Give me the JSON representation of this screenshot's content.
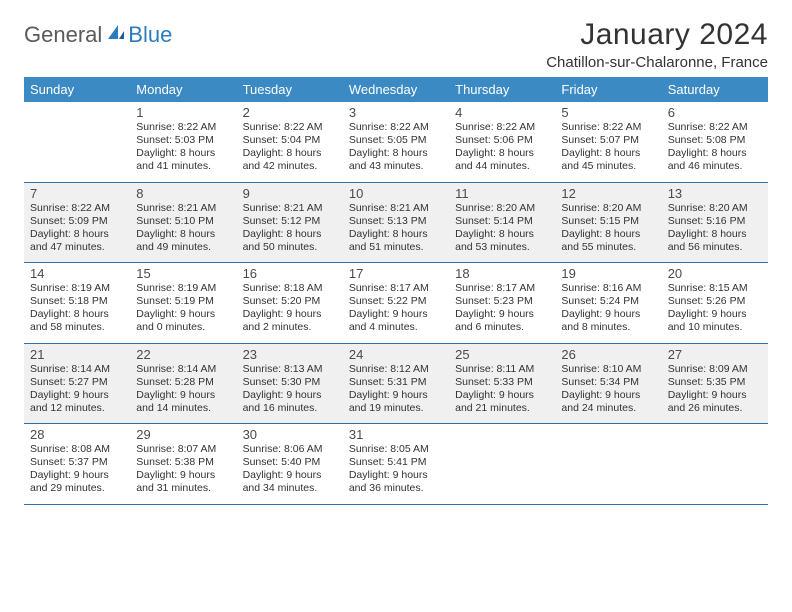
{
  "logo": {
    "general": "General",
    "blue": "Blue"
  },
  "title": "January 2024",
  "location": "Chatillon-sur-Chalaronne, France",
  "dayHeaders": [
    "Sunday",
    "Monday",
    "Tuesday",
    "Wednesday",
    "Thursday",
    "Friday",
    "Saturday"
  ],
  "colors": {
    "header_bg": "#3b8ac4",
    "rule": "#2f6fa8",
    "shade": "#f0f0f0",
    "logo_blue": "#2f7bbf",
    "text": "#333333"
  },
  "weeks": [
    {
      "shade": false,
      "cells": [
        {
          "day": "",
          "sunrise": "",
          "sunset": "",
          "daylight1": "",
          "daylight2": ""
        },
        {
          "day": "1",
          "sunrise": "Sunrise: 8:22 AM",
          "sunset": "Sunset: 5:03 PM",
          "daylight1": "Daylight: 8 hours",
          "daylight2": "and 41 minutes."
        },
        {
          "day": "2",
          "sunrise": "Sunrise: 8:22 AM",
          "sunset": "Sunset: 5:04 PM",
          "daylight1": "Daylight: 8 hours",
          "daylight2": "and 42 minutes."
        },
        {
          "day": "3",
          "sunrise": "Sunrise: 8:22 AM",
          "sunset": "Sunset: 5:05 PM",
          "daylight1": "Daylight: 8 hours",
          "daylight2": "and 43 minutes."
        },
        {
          "day": "4",
          "sunrise": "Sunrise: 8:22 AM",
          "sunset": "Sunset: 5:06 PM",
          "daylight1": "Daylight: 8 hours",
          "daylight2": "and 44 minutes."
        },
        {
          "day": "5",
          "sunrise": "Sunrise: 8:22 AM",
          "sunset": "Sunset: 5:07 PM",
          "daylight1": "Daylight: 8 hours",
          "daylight2": "and 45 minutes."
        },
        {
          "day": "6",
          "sunrise": "Sunrise: 8:22 AM",
          "sunset": "Sunset: 5:08 PM",
          "daylight1": "Daylight: 8 hours",
          "daylight2": "and 46 minutes."
        }
      ]
    },
    {
      "shade": true,
      "cells": [
        {
          "day": "7",
          "sunrise": "Sunrise: 8:22 AM",
          "sunset": "Sunset: 5:09 PM",
          "daylight1": "Daylight: 8 hours",
          "daylight2": "and 47 minutes."
        },
        {
          "day": "8",
          "sunrise": "Sunrise: 8:21 AM",
          "sunset": "Sunset: 5:10 PM",
          "daylight1": "Daylight: 8 hours",
          "daylight2": "and 49 minutes."
        },
        {
          "day": "9",
          "sunrise": "Sunrise: 8:21 AM",
          "sunset": "Sunset: 5:12 PM",
          "daylight1": "Daylight: 8 hours",
          "daylight2": "and 50 minutes."
        },
        {
          "day": "10",
          "sunrise": "Sunrise: 8:21 AM",
          "sunset": "Sunset: 5:13 PM",
          "daylight1": "Daylight: 8 hours",
          "daylight2": "and 51 minutes."
        },
        {
          "day": "11",
          "sunrise": "Sunrise: 8:20 AM",
          "sunset": "Sunset: 5:14 PM",
          "daylight1": "Daylight: 8 hours",
          "daylight2": "and 53 minutes."
        },
        {
          "day": "12",
          "sunrise": "Sunrise: 8:20 AM",
          "sunset": "Sunset: 5:15 PM",
          "daylight1": "Daylight: 8 hours",
          "daylight2": "and 55 minutes."
        },
        {
          "day": "13",
          "sunrise": "Sunrise: 8:20 AM",
          "sunset": "Sunset: 5:16 PM",
          "daylight1": "Daylight: 8 hours",
          "daylight2": "and 56 minutes."
        }
      ]
    },
    {
      "shade": false,
      "cells": [
        {
          "day": "14",
          "sunrise": "Sunrise: 8:19 AM",
          "sunset": "Sunset: 5:18 PM",
          "daylight1": "Daylight: 8 hours",
          "daylight2": "and 58 minutes."
        },
        {
          "day": "15",
          "sunrise": "Sunrise: 8:19 AM",
          "sunset": "Sunset: 5:19 PM",
          "daylight1": "Daylight: 9 hours",
          "daylight2": "and 0 minutes."
        },
        {
          "day": "16",
          "sunrise": "Sunrise: 8:18 AM",
          "sunset": "Sunset: 5:20 PM",
          "daylight1": "Daylight: 9 hours",
          "daylight2": "and 2 minutes."
        },
        {
          "day": "17",
          "sunrise": "Sunrise: 8:17 AM",
          "sunset": "Sunset: 5:22 PM",
          "daylight1": "Daylight: 9 hours",
          "daylight2": "and 4 minutes."
        },
        {
          "day": "18",
          "sunrise": "Sunrise: 8:17 AM",
          "sunset": "Sunset: 5:23 PM",
          "daylight1": "Daylight: 9 hours",
          "daylight2": "and 6 minutes."
        },
        {
          "day": "19",
          "sunrise": "Sunrise: 8:16 AM",
          "sunset": "Sunset: 5:24 PM",
          "daylight1": "Daylight: 9 hours",
          "daylight2": "and 8 minutes."
        },
        {
          "day": "20",
          "sunrise": "Sunrise: 8:15 AM",
          "sunset": "Sunset: 5:26 PM",
          "daylight1": "Daylight: 9 hours",
          "daylight2": "and 10 minutes."
        }
      ]
    },
    {
      "shade": true,
      "cells": [
        {
          "day": "21",
          "sunrise": "Sunrise: 8:14 AM",
          "sunset": "Sunset: 5:27 PM",
          "daylight1": "Daylight: 9 hours",
          "daylight2": "and 12 minutes."
        },
        {
          "day": "22",
          "sunrise": "Sunrise: 8:14 AM",
          "sunset": "Sunset: 5:28 PM",
          "daylight1": "Daylight: 9 hours",
          "daylight2": "and 14 minutes."
        },
        {
          "day": "23",
          "sunrise": "Sunrise: 8:13 AM",
          "sunset": "Sunset: 5:30 PM",
          "daylight1": "Daylight: 9 hours",
          "daylight2": "and 16 minutes."
        },
        {
          "day": "24",
          "sunrise": "Sunrise: 8:12 AM",
          "sunset": "Sunset: 5:31 PM",
          "daylight1": "Daylight: 9 hours",
          "daylight2": "and 19 minutes."
        },
        {
          "day": "25",
          "sunrise": "Sunrise: 8:11 AM",
          "sunset": "Sunset: 5:33 PM",
          "daylight1": "Daylight: 9 hours",
          "daylight2": "and 21 minutes."
        },
        {
          "day": "26",
          "sunrise": "Sunrise: 8:10 AM",
          "sunset": "Sunset: 5:34 PM",
          "daylight1": "Daylight: 9 hours",
          "daylight2": "and 24 minutes."
        },
        {
          "day": "27",
          "sunrise": "Sunrise: 8:09 AM",
          "sunset": "Sunset: 5:35 PM",
          "daylight1": "Daylight: 9 hours",
          "daylight2": "and 26 minutes."
        }
      ]
    },
    {
      "shade": false,
      "cells": [
        {
          "day": "28",
          "sunrise": "Sunrise: 8:08 AM",
          "sunset": "Sunset: 5:37 PM",
          "daylight1": "Daylight: 9 hours",
          "daylight2": "and 29 minutes."
        },
        {
          "day": "29",
          "sunrise": "Sunrise: 8:07 AM",
          "sunset": "Sunset: 5:38 PM",
          "daylight1": "Daylight: 9 hours",
          "daylight2": "and 31 minutes."
        },
        {
          "day": "30",
          "sunrise": "Sunrise: 8:06 AM",
          "sunset": "Sunset: 5:40 PM",
          "daylight1": "Daylight: 9 hours",
          "daylight2": "and 34 minutes."
        },
        {
          "day": "31",
          "sunrise": "Sunrise: 8:05 AM",
          "sunset": "Sunset: 5:41 PM",
          "daylight1": "Daylight: 9 hours",
          "daylight2": "and 36 minutes."
        },
        {
          "day": "",
          "sunrise": "",
          "sunset": "",
          "daylight1": "",
          "daylight2": ""
        },
        {
          "day": "",
          "sunrise": "",
          "sunset": "",
          "daylight1": "",
          "daylight2": ""
        },
        {
          "day": "",
          "sunrise": "",
          "sunset": "",
          "daylight1": "",
          "daylight2": ""
        }
      ]
    }
  ]
}
